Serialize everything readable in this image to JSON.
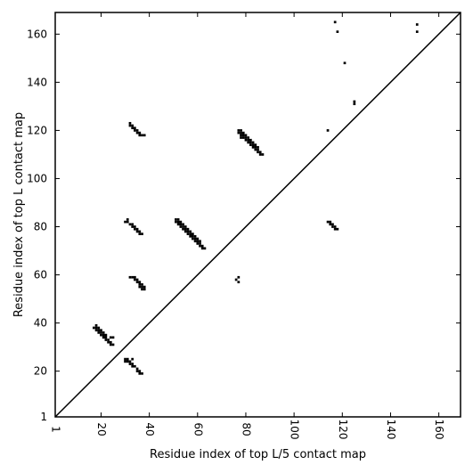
{
  "chart_data": {
    "type": "scatter",
    "title": "",
    "xlabel": "Residue index of top L/5 contact map",
    "ylabel": "Residue index of top L contact map",
    "xlim": [
      1,
      169
    ],
    "ylim": [
      1,
      169
    ],
    "xticks": [
      1,
      20,
      40,
      60,
      80,
      100,
      120,
      140,
      160
    ],
    "yticks": [
      1,
      20,
      40,
      60,
      80,
      100,
      120,
      140,
      160
    ],
    "diagonal": {
      "x": [
        1,
        169
      ],
      "y": [
        1,
        169
      ]
    },
    "marker": "square",
    "color": "#000000",
    "points": [
      [
        17,
        38
      ],
      [
        18,
        38
      ],
      [
        18,
        37
      ],
      [
        19,
        37
      ],
      [
        19,
        36
      ],
      [
        20,
        36
      ],
      [
        20,
        35
      ],
      [
        21,
        35
      ],
      [
        21,
        34
      ],
      [
        22,
        34
      ],
      [
        22,
        33
      ],
      [
        23,
        33
      ],
      [
        23,
        32
      ],
      [
        24,
        32
      ],
      [
        24,
        31
      ],
      [
        25,
        31
      ],
      [
        24,
        34
      ],
      [
        25,
        34
      ],
      [
        18,
        39
      ],
      [
        19,
        38
      ],
      [
        20,
        37
      ],
      [
        21,
        36
      ],
      [
        22,
        35
      ],
      [
        30,
        25
      ],
      [
        31,
        25
      ],
      [
        31,
        24
      ],
      [
        32,
        24
      ],
      [
        32,
        23
      ],
      [
        33,
        23
      ],
      [
        33,
        22
      ],
      [
        34,
        22
      ],
      [
        33,
        25
      ],
      [
        35,
        21
      ],
      [
        35,
        20
      ],
      [
        36,
        20
      ],
      [
        36,
        19
      ],
      [
        37,
        19
      ],
      [
        30,
        24
      ],
      [
        32,
        59
      ],
      [
        33,
        59
      ],
      [
        34,
        59
      ],
      [
        34,
        58
      ],
      [
        35,
        58
      ],
      [
        35,
        57
      ],
      [
        36,
        57
      ],
      [
        36,
        56
      ],
      [
        37,
        56
      ],
      [
        37,
        55
      ],
      [
        38,
        55
      ],
      [
        38,
        54
      ],
      [
        37,
        54
      ],
      [
        36,
        55
      ],
      [
        30,
        82
      ],
      [
        31,
        82
      ],
      [
        31,
        83
      ],
      [
        32,
        81
      ],
      [
        33,
        81
      ],
      [
        33,
        80
      ],
      [
        34,
        80
      ],
      [
        34,
        79
      ],
      [
        35,
        79
      ],
      [
        35,
        78
      ],
      [
        36,
        78
      ],
      [
        36,
        77
      ],
      [
        37,
        77
      ],
      [
        32,
        123
      ],
      [
        32,
        122
      ],
      [
        33,
        122
      ],
      [
        33,
        121
      ],
      [
        34,
        121
      ],
      [
        34,
        120
      ],
      [
        35,
        120
      ],
      [
        35,
        119
      ],
      [
        36,
        119
      ],
      [
        36,
        118
      ],
      [
        37,
        118
      ],
      [
        38,
        118
      ],
      [
        51,
        83
      ],
      [
        51,
        82
      ],
      [
        52,
        82
      ],
      [
        52,
        81
      ],
      [
        53,
        81
      ],
      [
        53,
        80
      ],
      [
        54,
        80
      ],
      [
        54,
        79
      ],
      [
        55,
        79
      ],
      [
        55,
        78
      ],
      [
        56,
        78
      ],
      [
        56,
        77
      ],
      [
        57,
        77
      ],
      [
        57,
        76
      ],
      [
        58,
        76
      ],
      [
        58,
        75
      ],
      [
        59,
        75
      ],
      [
        59,
        74
      ],
      [
        60,
        74
      ],
      [
        60,
        73
      ],
      [
        61,
        73
      ],
      [
        61,
        72
      ],
      [
        62,
        72
      ],
      [
        62,
        71
      ],
      [
        63,
        71
      ],
      [
        52,
        83
      ],
      [
        53,
        82
      ],
      [
        54,
        81
      ],
      [
        55,
        80
      ],
      [
        56,
        79
      ],
      [
        57,
        78
      ],
      [
        58,
        77
      ],
      [
        59,
        76
      ],
      [
        60,
        75
      ],
      [
        61,
        74
      ],
      [
        76,
        58
      ],
      [
        77,
        59
      ],
      [
        77,
        57
      ],
      [
        77,
        120
      ],
      [
        78,
        120
      ],
      [
        78,
        119
      ],
      [
        77,
        119
      ],
      [
        78,
        118
      ],
      [
        79,
        118
      ],
      [
        79,
        117
      ],
      [
        80,
        117
      ],
      [
        80,
        116
      ],
      [
        81,
        116
      ],
      [
        81,
        115
      ],
      [
        82,
        115
      ],
      [
        82,
        114
      ],
      [
        83,
        114
      ],
      [
        83,
        113
      ],
      [
        84,
        113
      ],
      [
        84,
        112
      ],
      [
        85,
        112
      ],
      [
        85,
        111
      ],
      [
        86,
        111
      ],
      [
        86,
        110
      ],
      [
        87,
        110
      ],
      [
        78,
        117
      ],
      [
        79,
        119
      ],
      [
        80,
        118
      ],
      [
        81,
        117
      ],
      [
        82,
        116
      ],
      [
        83,
        115
      ],
      [
        84,
        114
      ],
      [
        85,
        113
      ],
      [
        114,
        120
      ],
      [
        114,
        82
      ],
      [
        115,
        82
      ],
      [
        115,
        81
      ],
      [
        116,
        81
      ],
      [
        116,
        80
      ],
      [
        117,
        80
      ],
      [
        117,
        79
      ],
      [
        118,
        79
      ],
      [
        117,
        165
      ],
      [
        118,
        161
      ],
      [
        121,
        148
      ],
      [
        125,
        132
      ],
      [
        125,
        131
      ],
      [
        151,
        164
      ],
      [
        151,
        161
      ]
    ]
  }
}
